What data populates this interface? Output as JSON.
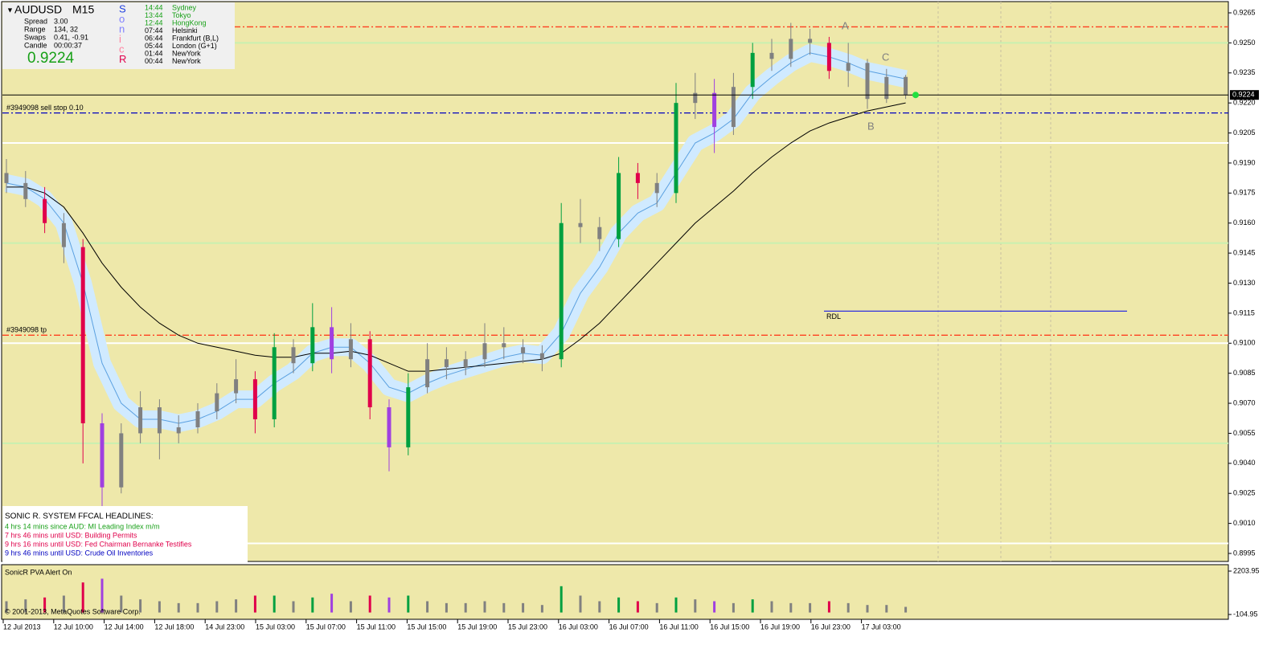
{
  "info": {
    "symbol": "AUDUSD",
    "timeframe": "M15",
    "rows": [
      [
        "Spread",
        "3.00"
      ],
      [
        "Range",
        "134, 32"
      ],
      [
        "Swaps",
        "0.41, -0.91"
      ],
      [
        "Candle",
        "00:00:37"
      ]
    ],
    "price": "0.9224",
    "sonic_letters": [
      "S",
      "o",
      "n",
      "i",
      "c",
      "R"
    ],
    "sessions": [
      [
        "14:44",
        "Sydney"
      ],
      [
        "13:44",
        "Tokyo"
      ],
      [
        "12:44",
        "HongKong"
      ],
      [
        "07:44",
        "Helsinki"
      ],
      [
        "06:44",
        "Frankfurt  (B,L)"
      ],
      [
        "05:44",
        "London  (G+1)"
      ],
      [
        "01:44",
        "NewYork"
      ],
      [
        "00:44",
        "NewYork"
      ]
    ]
  },
  "news": {
    "title": "SONIC R. SYSTEM  FFCAL HEADLINES:",
    "lines": [
      "4 hrs 14 mins since AUD: MI Leading Index m/m",
      "7 hrs 46 mins until USD: Building Permits",
      "9 hrs 16 mins until USD: Fed Chairman Bernanke Testifies",
      "9 hrs 46 mins until USD: Crude Oil Inventories"
    ]
  },
  "chart_data": {
    "type": "candlestick",
    "open": [
      0.9185,
      0.918,
      0.9172,
      0.916,
      0.9148,
      0.906,
      0.9028,
      0.9055,
      0.9068,
      0.9055,
      0.9058,
      0.9066,
      0.9075,
      0.9082,
      0.9062,
      0.9098,
      0.909,
      0.9108,
      0.9092,
      0.9102,
      0.9068,
      0.9048,
      0.9078,
      0.9092,
      0.9088,
      0.9092,
      0.91,
      0.9098,
      0.9095,
      0.9092,
      0.916,
      0.9158,
      0.9152,
      0.9185,
      0.918,
      0.9175,
      0.922,
      0.9225,
      0.9208,
      0.9228,
      0.9245,
      0.9242,
      0.9252,
      0.925,
      0.9236,
      0.924,
      0.9222,
      0.9233
    ],
    "high": [
      0.9192,
      0.9186,
      0.9178,
      0.9165,
      0.9152,
      0.9065,
      0.906,
      0.9076,
      0.9072,
      0.9064,
      0.907,
      0.908,
      0.9092,
      0.9086,
      0.9105,
      0.9102,
      0.912,
      0.9118,
      0.911,
      0.9106,
      0.9072,
      0.9085,
      0.91,
      0.9098,
      0.9096,
      0.911,
      0.9108,
      0.9102,
      0.9099,
      0.917,
      0.9172,
      0.9163,
      0.9193,
      0.919,
      0.9185,
      0.923,
      0.9235,
      0.9232,
      0.9235,
      0.925,
      0.9252,
      0.926,
      0.9257,
      0.9253,
      0.925,
      0.9242,
      0.9237,
      0.9234
    ],
    "low": [
      0.9175,
      0.9168,
      0.9155,
      0.914,
      0.904,
      0.9018,
      0.9025,
      0.905,
      0.9042,
      0.905,
      0.9055,
      0.9062,
      0.907,
      0.9055,
      0.9058,
      0.9085,
      0.9086,
      0.9085,
      0.9088,
      0.9062,
      0.9036,
      0.9044,
      0.9075,
      0.9082,
      0.9084,
      0.9088,
      0.9092,
      0.909,
      0.9086,
      0.9088,
      0.915,
      0.9146,
      0.9148,
      0.9172,
      0.9168,
      0.917,
      0.9212,
      0.9195,
      0.9204,
      0.9222,
      0.9236,
      0.9238,
      0.9244,
      0.9232,
      0.9228,
      0.9217,
      0.922,
      0.9222
    ],
    "close": [
      0.918,
      0.9172,
      0.916,
      0.9148,
      0.906,
      0.9028,
      0.9055,
      0.9068,
      0.9055,
      0.9058,
      0.9066,
      0.9075,
      0.9082,
      0.9062,
      0.9098,
      0.909,
      0.9108,
      0.9092,
      0.9102,
      0.9068,
      0.9048,
      0.9078,
      0.9092,
      0.9088,
      0.9092,
      0.91,
      0.9098,
      0.9095,
      0.9092,
      0.916,
      0.9158,
      0.9152,
      0.9185,
      0.918,
      0.9175,
      0.922,
      0.9225,
      0.9208,
      0.9228,
      0.9245,
      0.9242,
      0.9252,
      0.925,
      0.9236,
      0.924,
      0.9222,
      0.9233,
      0.9224
    ],
    "colors": [
      "#808080",
      "#808080",
      "#e0004b",
      "#808080",
      "#e0004b",
      "#a040e0",
      "#808080",
      "#808080",
      "#808080",
      "#808080",
      "#808080",
      "#808080",
      "#808080",
      "#e0004b",
      "#00a040",
      "#808080",
      "#00a040",
      "#a040e0",
      "#808080",
      "#e0004b",
      "#a040e0",
      "#00a040",
      "#808080",
      "#808080",
      "#808080",
      "#808080",
      "#808080",
      "#808080",
      "#808080",
      "#00a040",
      "#808080",
      "#808080",
      "#00a040",
      "#e0004b",
      "#808080",
      "#00a040",
      "#808080",
      "#a040e0",
      "#808080",
      "#00a040",
      "#808080",
      "#808080",
      "#808080",
      "#e0004b",
      "#808080",
      "#808080",
      "#808080",
      "#808080"
    ],
    "volume": [
      600,
      700,
      800,
      900,
      1600,
      1800,
      900,
      700,
      600,
      500,
      500,
      600,
      700,
      900,
      900,
      600,
      800,
      1000,
      600,
      900,
      800,
      900,
      600,
      500,
      500,
      600,
      500,
      500,
      400,
      1400,
      900,
      600,
      800,
      600,
      500,
      800,
      700,
      600,
      500,
      700,
      600,
      500,
      500,
      600,
      500,
      400,
      400,
      300
    ],
    "ma_fast": [
      0.918,
      0.9178,
      0.9172,
      0.916,
      0.913,
      0.909,
      0.907,
      0.9062,
      0.9062,
      0.906,
      0.9062,
      0.9066,
      0.9072,
      0.9072,
      0.908,
      0.9086,
      0.9095,
      0.9098,
      0.9098,
      0.909,
      0.9078,
      0.9075,
      0.908,
      0.9084,
      0.9087,
      0.909,
      0.9093,
      0.9095,
      0.9094,
      0.9105,
      0.9125,
      0.9138,
      0.9155,
      0.9165,
      0.917,
      0.9185,
      0.92,
      0.9205,
      0.9212,
      0.9225,
      0.9233,
      0.924,
      0.9245,
      0.9243,
      0.924,
      0.9236,
      0.9234,
      0.9232
    ],
    "ma_slow": [
      0.9178,
      0.9178,
      0.9175,
      0.9168,
      0.9155,
      0.914,
      0.9128,
      0.9118,
      0.911,
      0.9104,
      0.91,
      0.9098,
      0.9096,
      0.9094,
      0.9093,
      0.9093,
      0.9095,
      0.9095,
      0.9096,
      0.9094,
      0.909,
      0.9086,
      0.9086,
      0.9087,
      0.9088,
      0.9089,
      0.909,
      0.9091,
      0.9092,
      0.9095,
      0.9102,
      0.911,
      0.912,
      0.913,
      0.914,
      0.915,
      0.916,
      0.9168,
      0.9176,
      0.9185,
      0.9193,
      0.92,
      0.9206,
      0.921,
      0.9213,
      0.9216,
      0.9218,
      0.922
    ],
    "current_price": 0.9224,
    "ylim": [
      0.8995,
      0.9265
    ],
    "yticks": [
      0.9265,
      {
        "value": 0.925,
        "label": "0.9250"
      },
      0.9235,
      {
        "value": 0.922,
        "label": "0.9220"
      },
      0.9205,
      {
        "value": 0.919,
        "label": "0.9190"
      },
      0.9175,
      {
        "value": 0.916,
        "label": "0.9160"
      },
      0.9145,
      {
        "value": 0.913,
        "label": "0.9130"
      },
      0.9115,
      {
        "value": 0.91,
        "label": "0.9100"
      },
      0.9085,
      {
        "value": 0.907,
        "label": "0.9070"
      },
      0.9055,
      {
        "value": 0.904,
        "label": "0.9040"
      },
      0.9025,
      {
        "value": 0.901,
        "label": "0.9010"
      },
      0.8995
    ],
    "time_labels": [
      "12 Jul 2013",
      "12 Jul 10:00",
      "12 Jul 14:00",
      "12 Jul 18:00",
      "14 Jul 23:00",
      "15 Jul 03:00",
      "15 Jul 07:00",
      "15 Jul 11:00",
      "15 Jul 15:00",
      "15 Jul 19:00",
      "15 Jul 23:00",
      "16 Jul 03:00",
      "16 Jul 07:00",
      "16 Jul 11:00",
      "16 Jul 15:00",
      "16 Jul 19:00",
      "16 Jul 23:00",
      "17 Jul 03:00"
    ],
    "hlines": [
      {
        "value": 0.9258,
        "color": "#ff4020",
        "style": "dashdot"
      },
      {
        "label": "#3949098 sell stop 0.10",
        "value": 0.9215,
        "color": "#0000c0",
        "style": "dashdot"
      },
      {
        "label": "#3949098 tp",
        "value": 0.9104,
        "color": "#ff4020",
        "style": "dashdot"
      },
      {
        "value": 0.925,
        "color": "#c8f0b0",
        "style": "solid"
      },
      {
        "value": 0.915,
        "color": "#c8f0b0",
        "style": "solid"
      },
      {
        "value": 0.905,
        "color": "#c8f0b0",
        "style": "solid"
      },
      {
        "value": 0.92,
        "color": "#ffffff",
        "style": "solid"
      },
      {
        "value": 0.91,
        "color": "#ffffff",
        "style": "solid"
      },
      {
        "value": 0.9,
        "color": "#ffffff",
        "style": "solid"
      }
    ],
    "rdl": {
      "label": "RDL",
      "value": 0.9116,
      "color": "#3030e0"
    },
    "pattern_labels": [
      "A",
      "B",
      "C"
    ],
    "volume_title": "SonicR PVA   Alert On",
    "vlim": [
      -104.95,
      2203.95
    ],
    "vticks": [
      2203.95,
      -104.95
    ],
    "copyright": "© 2001-2013, MetaQuotes Software Corp."
  }
}
